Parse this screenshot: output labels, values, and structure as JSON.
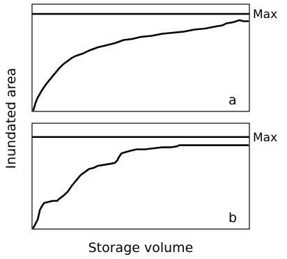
{
  "chart_data": {
    "type": "line",
    "xlabel": "Storage volume",
    "ylabel": "Inundated area",
    "grid": false,
    "panels": [
      {
        "label": "a",
        "max_label": "Max",
        "max_value": 0.92,
        "xlim": [
          0,
          1
        ],
        "ylim": [
          0,
          1
        ],
        "points": [
          [
            0.0,
            0.0
          ],
          [
            0.01,
            0.07
          ],
          [
            0.02,
            0.12
          ],
          [
            0.04,
            0.19
          ],
          [
            0.06,
            0.25
          ],
          [
            0.08,
            0.3
          ],
          [
            0.1,
            0.35
          ],
          [
            0.12,
            0.4
          ],
          [
            0.14,
            0.44
          ],
          [
            0.16,
            0.47
          ],
          [
            0.18,
            0.5
          ],
          [
            0.2,
            0.52
          ],
          [
            0.23,
            0.54
          ],
          [
            0.26,
            0.57
          ],
          [
            0.3,
            0.6
          ],
          [
            0.34,
            0.62
          ],
          [
            0.38,
            0.64
          ],
          [
            0.42,
            0.67
          ],
          [
            0.46,
            0.68
          ],
          [
            0.5,
            0.7
          ],
          [
            0.55,
            0.71
          ],
          [
            0.6,
            0.73
          ],
          [
            0.65,
            0.74
          ],
          [
            0.7,
            0.75
          ],
          [
            0.75,
            0.77
          ],
          [
            0.8,
            0.78
          ],
          [
            0.85,
            0.8
          ],
          [
            0.88,
            0.81
          ],
          [
            0.9,
            0.83
          ],
          [
            0.93,
            0.84
          ],
          [
            0.96,
            0.86
          ],
          [
            0.98,
            0.85
          ],
          [
            1.0,
            0.85
          ]
        ]
      },
      {
        "label": "b",
        "max_label": "Max",
        "max_value": 0.88,
        "xlim": [
          0,
          1
        ],
        "ylim": [
          0,
          1
        ],
        "points": [
          [
            0.0,
            0.0
          ],
          [
            0.01,
            0.04
          ],
          [
            0.02,
            0.08
          ],
          [
            0.03,
            0.17
          ],
          [
            0.04,
            0.21
          ],
          [
            0.05,
            0.24
          ],
          [
            0.07,
            0.25
          ],
          [
            0.09,
            0.26
          ],
          [
            0.11,
            0.26
          ],
          [
            0.12,
            0.28
          ],
          [
            0.14,
            0.31
          ],
          [
            0.16,
            0.35
          ],
          [
            0.18,
            0.41
          ],
          [
            0.2,
            0.46
          ],
          [
            0.22,
            0.51
          ],
          [
            0.24,
            0.54
          ],
          [
            0.26,
            0.57
          ],
          [
            0.28,
            0.58
          ],
          [
            0.3,
            0.6
          ],
          [
            0.33,
            0.61
          ],
          [
            0.36,
            0.62
          ],
          [
            0.38,
            0.63
          ],
          [
            0.39,
            0.65
          ],
          [
            0.4,
            0.69
          ],
          [
            0.41,
            0.72
          ],
          [
            0.44,
            0.74
          ],
          [
            0.48,
            0.76
          ],
          [
            0.52,
            0.76
          ],
          [
            0.56,
            0.77
          ],
          [
            0.6,
            0.78
          ],
          [
            0.64,
            0.78
          ],
          [
            0.67,
            0.79
          ],
          [
            0.68,
            0.8
          ],
          [
            0.72,
            0.8
          ],
          [
            0.8,
            0.8
          ],
          [
            0.9,
            0.8
          ],
          [
            1.0,
            0.8
          ]
        ]
      }
    ]
  }
}
